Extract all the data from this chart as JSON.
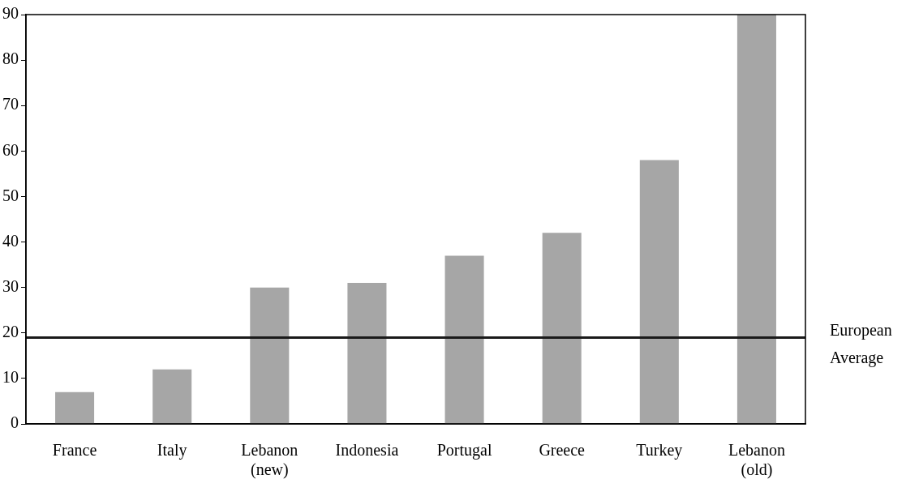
{
  "chart_data": {
    "type": "bar",
    "categories": [
      "France",
      "Italy",
      "Lebanon\n(new)",
      "Indonesia",
      "Portugal",
      "Greece",
      "Turkey",
      "Lebanon\n(old)"
    ],
    "values": [
      7,
      12,
      30,
      31,
      37,
      42,
      58,
      90
    ],
    "color": "#a6a6a6",
    "ylim": [
      0,
      90
    ],
    "yticks": [
      0,
      10,
      20,
      30,
      40,
      50,
      60,
      70,
      80,
      90
    ],
    "grid": false,
    "legend": false,
    "ref_lines": [
      {
        "axis": "y",
        "value": 19,
        "label": "European Average",
        "color": "#1a1a1a",
        "line_style": "solid"
      }
    ]
  }
}
